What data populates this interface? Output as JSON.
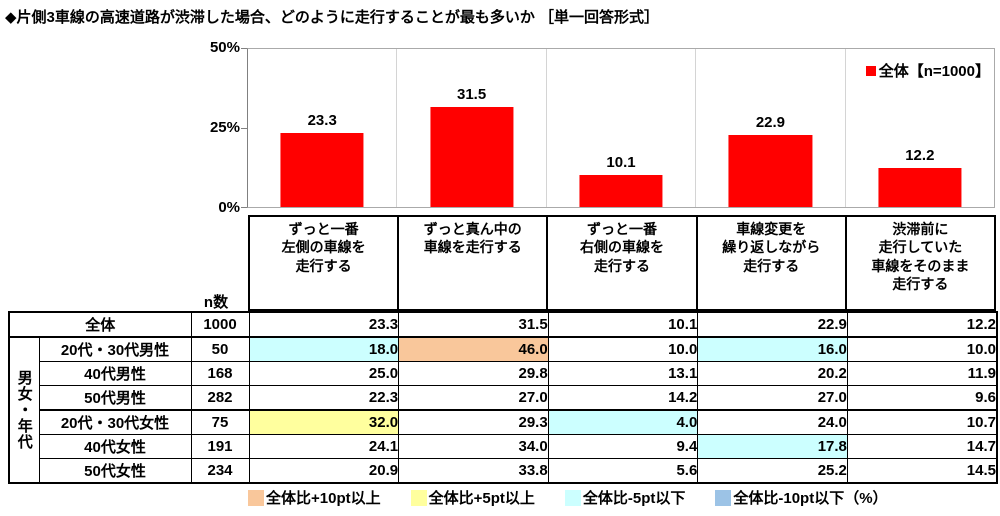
{
  "title": "◆片側3車線の高速道路が渋滞した場合、どのように走行することが最も多いか ［単一回答形式］",
  "chart_data": {
    "type": "bar",
    "title": "",
    "categories": [
      "ずっと一番左側の車線を走行する",
      "ずっと真ん中の車線を走行する",
      "ずっと一番右側の車線を走行する",
      "車線変更を繰り返しながら走行する",
      "渋滞前に走行していた車線をそのまま走行する"
    ],
    "values": [
      23.3,
      31.5,
      10.1,
      22.9,
      12.2
    ],
    "xlabel": "",
    "ylabel": "",
    "ylim": [
      0,
      50
    ],
    "y_ticks": [
      "50%",
      "25%",
      "0%"
    ],
    "grid": "vertical category separators only",
    "legend": "全体【n=1000】",
    "legend_position": "top-right",
    "bar_color": "#ff0000"
  },
  "table": {
    "n_label": "n数",
    "group_label": "男女・年代",
    "col_headers": [
      "ずっと一番\n左側の車線を\n走行する",
      "ずっと真ん中の\n車線を走行する",
      "ずっと一番\n右側の車線を\n走行する",
      "車線変更を\n繰り返しながら\n走行する",
      "渋滞前に\n走行していた\n車線をそのまま\n走行する"
    ],
    "highlight_colors": {
      "plus10": "#f9c79b",
      "plus5": "#ffff9e",
      "minus5": "#ccffff",
      "minus10": "#9cc3e6"
    },
    "rows": [
      {
        "label": "全体",
        "n": "1000",
        "values": [
          "23.3",
          "31.5",
          "10.1",
          "22.9",
          "12.2"
        ],
        "highlights": [
          "",
          "",
          "",
          "",
          ""
        ]
      },
      {
        "label": "20代・30代男性",
        "n": "50",
        "values": [
          "18.0",
          "46.0",
          "10.0",
          "16.0",
          "10.0"
        ],
        "highlights": [
          "minus5",
          "plus10",
          "",
          "minus5",
          ""
        ]
      },
      {
        "label": "40代男性",
        "n": "168",
        "values": [
          "25.0",
          "29.8",
          "13.1",
          "20.2",
          "11.9"
        ],
        "highlights": [
          "",
          "",
          "",
          "",
          ""
        ]
      },
      {
        "label": "50代男性",
        "n": "282",
        "values": [
          "22.3",
          "27.0",
          "14.2",
          "27.0",
          "9.6"
        ],
        "highlights": [
          "",
          "",
          "",
          "",
          ""
        ]
      },
      {
        "label": "20代・30代女性",
        "n": "75",
        "values": [
          "32.0",
          "29.3",
          "4.0",
          "24.0",
          "10.7"
        ],
        "highlights": [
          "plus5",
          "",
          "minus5",
          "",
          ""
        ]
      },
      {
        "label": "40代女性",
        "n": "191",
        "values": [
          "24.1",
          "34.0",
          "9.4",
          "17.8",
          "14.7"
        ],
        "highlights": [
          "",
          "",
          "",
          "minus5",
          ""
        ]
      },
      {
        "label": "50代女性",
        "n": "234",
        "values": [
          "20.9",
          "33.8",
          "5.6",
          "25.2",
          "14.5"
        ],
        "highlights": [
          "",
          "",
          "",
          "",
          ""
        ]
      }
    ]
  },
  "legend": {
    "items": [
      {
        "name": "plus10-swatch",
        "label": "全体比+10pt以上",
        "color": "#f9c79b"
      },
      {
        "name": "plus5-swatch",
        "label": "全体比+5pt以上",
        "color": "#ffff9e"
      },
      {
        "name": "minus5-swatch",
        "label": "全体比-5pt以下",
        "color": "#ccffff"
      },
      {
        "name": "minus10-swatch",
        "label": "全体比-10pt以下",
        "color": "#9cc3e6"
      }
    ],
    "suffix": "（%）"
  }
}
